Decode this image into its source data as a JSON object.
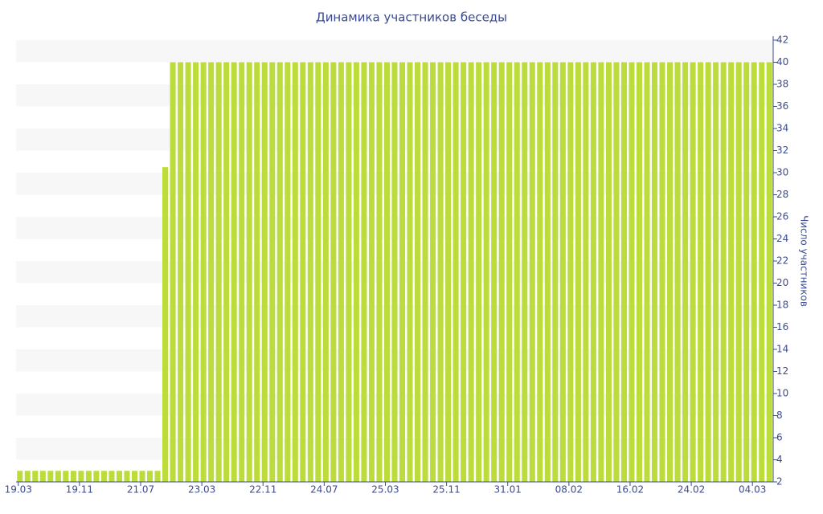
{
  "chart_data": {
    "type": "bar",
    "title": "Динамика участников беседы",
    "y_label": "Число участников",
    "categories": [
      "19.03",
      null,
      null,
      null,
      null,
      null,
      null,
      null,
      "19.11",
      null,
      null,
      null,
      null,
      null,
      null,
      null,
      "21.07",
      null,
      null,
      null,
      null,
      null,
      null,
      null,
      "23.03",
      null,
      null,
      null,
      null,
      null,
      null,
      null,
      "22.11",
      null,
      null,
      null,
      null,
      null,
      null,
      null,
      "24.07",
      null,
      null,
      null,
      null,
      null,
      null,
      null,
      "25.03",
      null,
      null,
      null,
      null,
      null,
      null,
      null,
      "25.11",
      null,
      null,
      null,
      null,
      null,
      null,
      null,
      "31.01",
      null,
      null,
      null,
      null,
      null,
      null,
      null,
      "08.02",
      null,
      null,
      null,
      null,
      null,
      null,
      null,
      "16.02",
      null,
      null,
      null,
      null,
      null,
      null,
      null,
      "24.02",
      null,
      null,
      null,
      null,
      null,
      null,
      null,
      "04.03",
      null,
      null
    ],
    "values": [
      3,
      3,
      3,
      3,
      3,
      3,
      3,
      3,
      3,
      3,
      3,
      3,
      3,
      3,
      3,
      3,
      3,
      3,
      3,
      30.5,
      40,
      40,
      40,
      40,
      40,
      40,
      40,
      40,
      40,
      40,
      40,
      40,
      40,
      40,
      40,
      40,
      40,
      40,
      40,
      40,
      40,
      40,
      40,
      40,
      40,
      40,
      40,
      40,
      40,
      40,
      40,
      40,
      40,
      40,
      40,
      40,
      40,
      40,
      40,
      40,
      40,
      40,
      40,
      40,
      40,
      40,
      40,
      40,
      40,
      40,
      40,
      40,
      40,
      40,
      40,
      40,
      40,
      40,
      40,
      40,
      40,
      40,
      40,
      40,
      40,
      40,
      40,
      40,
      40,
      40,
      40,
      40,
      40,
      40,
      40,
      40,
      40,
      40,
      40
    ],
    "color": "#bcdc3c",
    "ylim": [
      2,
      42
    ],
    "yticks": [
      2,
      4,
      6,
      8,
      10,
      12,
      14,
      16,
      18,
      20,
      22,
      24,
      26,
      28,
      30,
      32,
      34,
      36,
      38,
      40,
      42
    ],
    "grid": "bands",
    "y_axis_side": "right"
  }
}
